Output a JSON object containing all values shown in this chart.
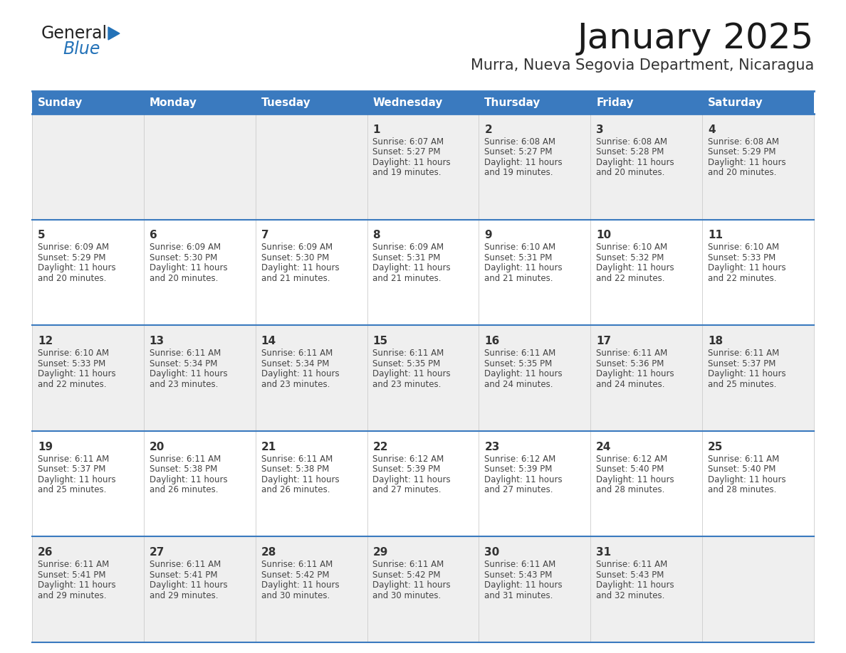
{
  "title": "January 2025",
  "subtitle": "Murra, Nueva Segovia Department, Nicaragua",
  "header_bg": "#3a7abf",
  "header_text_color": "#ffffff",
  "day_names": [
    "Sunday",
    "Monday",
    "Tuesday",
    "Wednesday",
    "Thursday",
    "Friday",
    "Saturday"
  ],
  "row_bg_odd": "#efefef",
  "row_bg_even": "#ffffff",
  "cell_border_color": "#3a7abf",
  "day_num_color": "#333333",
  "day_text_color": "#444444",
  "calendar": [
    [
      {
        "day": 0
      },
      {
        "day": 0
      },
      {
        "day": 0
      },
      {
        "day": 1,
        "sunrise": "6:07 AM",
        "sunset": "5:27 PM",
        "daylight": "11 hours and 19 minutes."
      },
      {
        "day": 2,
        "sunrise": "6:08 AM",
        "sunset": "5:27 PM",
        "daylight": "11 hours and 19 minutes."
      },
      {
        "day": 3,
        "sunrise": "6:08 AM",
        "sunset": "5:28 PM",
        "daylight": "11 hours and 20 minutes."
      },
      {
        "day": 4,
        "sunrise": "6:08 AM",
        "sunset": "5:29 PM",
        "daylight": "11 hours and 20 minutes."
      }
    ],
    [
      {
        "day": 5,
        "sunrise": "6:09 AM",
        "sunset": "5:29 PM",
        "daylight": "11 hours and 20 minutes."
      },
      {
        "day": 6,
        "sunrise": "6:09 AM",
        "sunset": "5:30 PM",
        "daylight": "11 hours and 20 minutes."
      },
      {
        "day": 7,
        "sunrise": "6:09 AM",
        "sunset": "5:30 PM",
        "daylight": "11 hours and 21 minutes."
      },
      {
        "day": 8,
        "sunrise": "6:09 AM",
        "sunset": "5:31 PM",
        "daylight": "11 hours and 21 minutes."
      },
      {
        "day": 9,
        "sunrise": "6:10 AM",
        "sunset": "5:31 PM",
        "daylight": "11 hours and 21 minutes."
      },
      {
        "day": 10,
        "sunrise": "6:10 AM",
        "sunset": "5:32 PM",
        "daylight": "11 hours and 22 minutes."
      },
      {
        "day": 11,
        "sunrise": "6:10 AM",
        "sunset": "5:33 PM",
        "daylight": "11 hours and 22 minutes."
      }
    ],
    [
      {
        "day": 12,
        "sunrise": "6:10 AM",
        "sunset": "5:33 PM",
        "daylight": "11 hours and 22 minutes."
      },
      {
        "day": 13,
        "sunrise": "6:11 AM",
        "sunset": "5:34 PM",
        "daylight": "11 hours and 23 minutes."
      },
      {
        "day": 14,
        "sunrise": "6:11 AM",
        "sunset": "5:34 PM",
        "daylight": "11 hours and 23 minutes."
      },
      {
        "day": 15,
        "sunrise": "6:11 AM",
        "sunset": "5:35 PM",
        "daylight": "11 hours and 23 minutes."
      },
      {
        "day": 16,
        "sunrise": "6:11 AM",
        "sunset": "5:35 PM",
        "daylight": "11 hours and 24 minutes."
      },
      {
        "day": 17,
        "sunrise": "6:11 AM",
        "sunset": "5:36 PM",
        "daylight": "11 hours and 24 minutes."
      },
      {
        "day": 18,
        "sunrise": "6:11 AM",
        "sunset": "5:37 PM",
        "daylight": "11 hours and 25 minutes."
      }
    ],
    [
      {
        "day": 19,
        "sunrise": "6:11 AM",
        "sunset": "5:37 PM",
        "daylight": "11 hours and 25 minutes."
      },
      {
        "day": 20,
        "sunrise": "6:11 AM",
        "sunset": "5:38 PM",
        "daylight": "11 hours and 26 minutes."
      },
      {
        "day": 21,
        "sunrise": "6:11 AM",
        "sunset": "5:38 PM",
        "daylight": "11 hours and 26 minutes."
      },
      {
        "day": 22,
        "sunrise": "6:12 AM",
        "sunset": "5:39 PM",
        "daylight": "11 hours and 27 minutes."
      },
      {
        "day": 23,
        "sunrise": "6:12 AM",
        "sunset": "5:39 PM",
        "daylight": "11 hours and 27 minutes."
      },
      {
        "day": 24,
        "sunrise": "6:12 AM",
        "sunset": "5:40 PM",
        "daylight": "11 hours and 28 minutes."
      },
      {
        "day": 25,
        "sunrise": "6:11 AM",
        "sunset": "5:40 PM",
        "daylight": "11 hours and 28 minutes."
      }
    ],
    [
      {
        "day": 26,
        "sunrise": "6:11 AM",
        "sunset": "5:41 PM",
        "daylight": "11 hours and 29 minutes."
      },
      {
        "day": 27,
        "sunrise": "6:11 AM",
        "sunset": "5:41 PM",
        "daylight": "11 hours and 29 minutes."
      },
      {
        "day": 28,
        "sunrise": "6:11 AM",
        "sunset": "5:42 PM",
        "daylight": "11 hours and 30 minutes."
      },
      {
        "day": 29,
        "sunrise": "6:11 AM",
        "sunset": "5:42 PM",
        "daylight": "11 hours and 30 minutes."
      },
      {
        "day": 30,
        "sunrise": "6:11 AM",
        "sunset": "5:43 PM",
        "daylight": "11 hours and 31 minutes."
      },
      {
        "day": 31,
        "sunrise": "6:11 AM",
        "sunset": "5:43 PM",
        "daylight": "11 hours and 32 minutes."
      },
      {
        "day": 0
      }
    ]
  ],
  "logo_general_color": "#222222",
  "logo_blue_color": "#2372b8",
  "logo_triangle_color": "#2372b8",
  "title_fontsize": 36,
  "subtitle_fontsize": 15,
  "header_fontsize": 11,
  "daynum_fontsize": 11,
  "info_fontsize": 8.5
}
